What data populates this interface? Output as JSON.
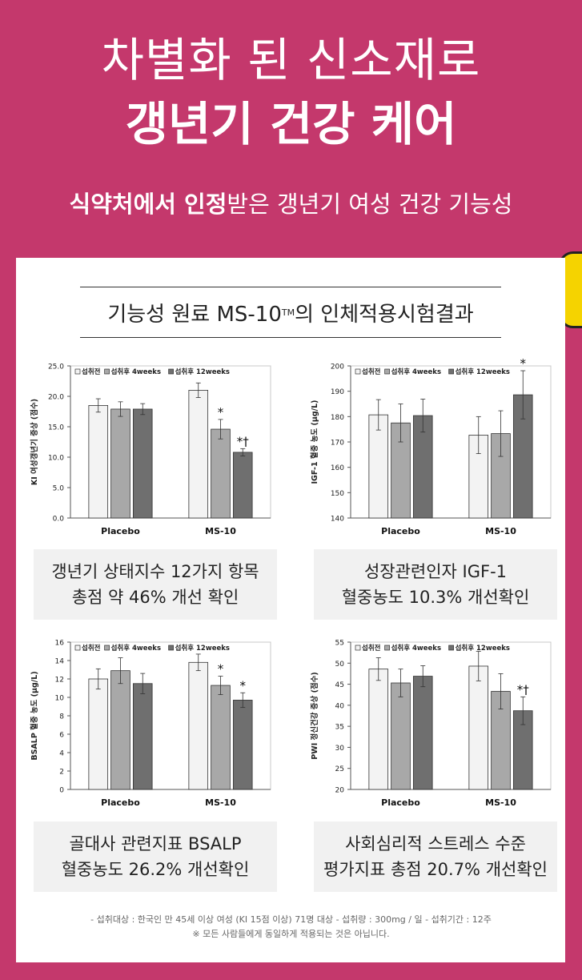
{
  "hero": {
    "line1": "차별화 된 신소재로",
    "line2": "갱년기 건강 케어",
    "sub_bold": "식약처에서 인정",
    "sub_rest": "받은 갱년기 여성 건강 기능성"
  },
  "card": {
    "title_pre": "기능성 원료 MS-10",
    "title_tm": "TM",
    "title_post": " 의 인체적용시험결과"
  },
  "legend": {
    "before": "섭취전",
    "after4": "섭취후 4weeks",
    "after12": "섭취후 12weeks"
  },
  "colors": {
    "before": "#f3f3f3",
    "after4": "#a8a8a8",
    "after12": "#6f6f6f",
    "accent": "#c4386c"
  },
  "chart_data": [
    {
      "type": "bar",
      "categories": [
        "Placebo",
        "MS-10"
      ],
      "ylabel": "KI 여성갱년기 증상 (점수)",
      "ylim": [
        0,
        25
      ],
      "yticks": [
        "0.0",
        "5.0",
        "10.0",
        "15.0",
        "20.0",
        "25.0"
      ],
      "series": [
        {
          "name": "섭취전",
          "values": [
            18.5,
            21.0
          ],
          "errors": [
            1.1,
            1.2
          ]
        },
        {
          "name": "섭취후 4weeks",
          "values": [
            17.9,
            14.6
          ],
          "errors": [
            1.2,
            1.6
          ]
        },
        {
          "name": "섭취후 12weeks",
          "values": [
            17.9,
            10.8
          ],
          "errors": [
            0.9,
            0.6
          ]
        }
      ],
      "marks": [
        [
          "",
          ""
        ],
        [
          "",
          "*"
        ],
        [
          "",
          "*†"
        ]
      ],
      "caption": [
        "갱년기 상태지수 12가지 항목",
        "총점 약 46% 개선 확인"
      ]
    },
    {
      "type": "bar",
      "categories": [
        "Placebo",
        "MS-10"
      ],
      "ylabel": "IGF-1 혈중 농도 (μg/L)",
      "ylim": [
        140,
        200
      ],
      "yticks": [
        "140",
        "150",
        "160",
        "170",
        "180",
        "190",
        "200"
      ],
      "series": [
        {
          "name": "섭취전",
          "values": [
            180.7,
            172.7
          ],
          "errors": [
            6.0,
            7.3
          ]
        },
        {
          "name": "섭취후 4weeks",
          "values": [
            177.5,
            173.3
          ],
          "errors": [
            7.5,
            9.0
          ]
        },
        {
          "name": "섭취후 12weeks",
          "values": [
            180.4,
            188.6
          ],
          "errors": [
            6.5,
            9.5
          ]
        }
      ],
      "marks": [
        [
          "",
          ""
        ],
        [
          "",
          ""
        ],
        [
          "",
          "*"
        ]
      ],
      "caption": [
        "성장관련인자 IGF-1",
        "혈중농도 10.3% 개선확인"
      ]
    },
    {
      "type": "bar",
      "categories": [
        "Placebo",
        "MS-10"
      ],
      "ylabel": "BSALP 혈중 농도 (μg/L)",
      "ylim": [
        0,
        16
      ],
      "yticks": [
        "0",
        "2",
        "4",
        "6",
        "8",
        "10",
        "12",
        "14",
        "16"
      ],
      "series": [
        {
          "name": "섭취전",
          "values": [
            12.0,
            13.8
          ],
          "errors": [
            1.1,
            0.9
          ]
        },
        {
          "name": "섭취후 4weeks",
          "values": [
            12.9,
            11.3
          ],
          "errors": [
            1.4,
            1.0
          ]
        },
        {
          "name": "섭취후 12weeks",
          "values": [
            11.5,
            9.7
          ],
          "errors": [
            1.1,
            0.8
          ]
        }
      ],
      "marks": [
        [
          "",
          ""
        ],
        [
          "",
          "*"
        ],
        [
          "",
          "*"
        ]
      ],
      "caption": [
        "골대사 관련지표 BSALP",
        "혈중농도 26.2% 개선확인"
      ]
    },
    {
      "type": "bar",
      "categories": [
        "Placebo",
        "MS-10"
      ],
      "ylabel": "PWI 정신건강 증상 (점수)",
      "ylim": [
        20,
        55
      ],
      "yticks": [
        "20",
        "25",
        "30",
        "35",
        "40",
        "45",
        "50",
        "55"
      ],
      "series": [
        {
          "name": "섭취전",
          "values": [
            48.6,
            49.3
          ],
          "errors": [
            2.7,
            3.5
          ]
        },
        {
          "name": "섭취후 4weeks",
          "values": [
            45.3,
            43.3
          ],
          "errors": [
            3.3,
            4.2
          ]
        },
        {
          "name": "섭취후 12weeks",
          "values": [
            46.9,
            38.7
          ],
          "errors": [
            2.5,
            3.3
          ]
        }
      ],
      "marks": [
        [
          "",
          ""
        ],
        [
          "",
          ""
        ],
        [
          "",
          "*†"
        ]
      ],
      "caption": [
        "사회심리적 스트레스 수준",
        "평가지표 총점 20.7% 개선확인"
      ]
    }
  ],
  "footnote": {
    "line1": "- 섭취대상 : 한국인 만 45세 이상 여성 (KI 15점 이상) 71명 대상 - 섭취량 : 300mg / 일 - 섭취기간 : 12주",
    "line2": "※ 모든 사람들에게 동일하게 적용되는 것은 아닙니다."
  }
}
